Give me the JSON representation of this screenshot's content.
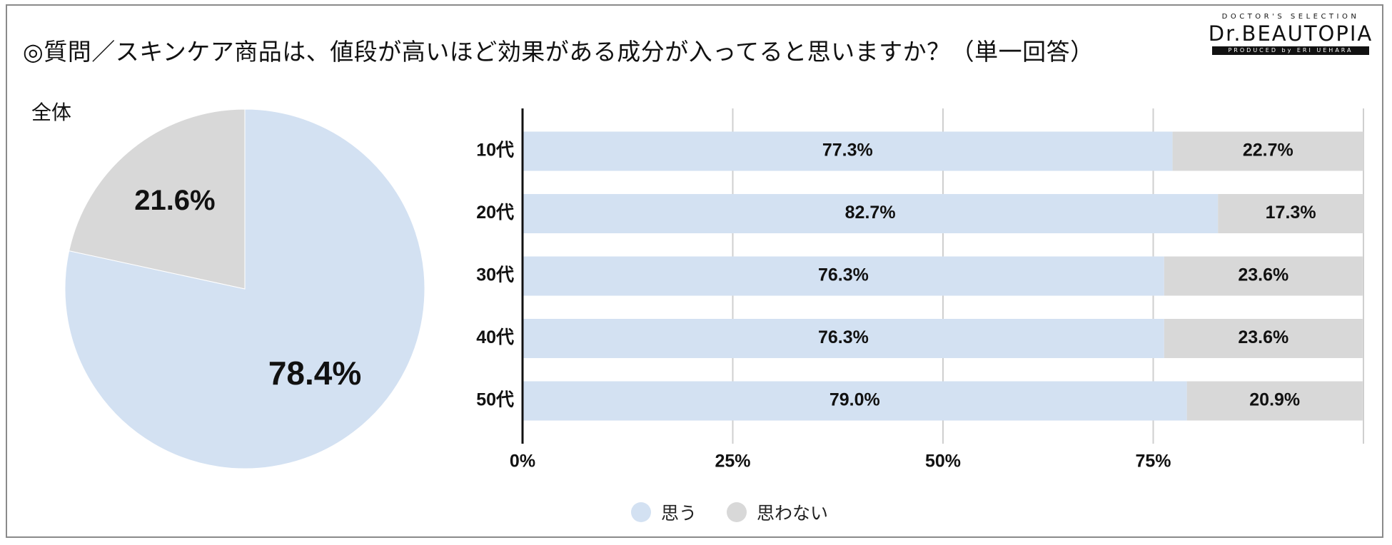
{
  "title": "◎質問／スキンケア商品は、値段が高いほど効果がある成分が入ってると思いますか？（単一回答）",
  "logo": {
    "top": "DOCTOR'S SELECTION",
    "main": "Dr.BEAUTOPIA",
    "sub": "PRODUCED by ERI UEHARA"
  },
  "colors": {
    "yes": "#d3e1f2",
    "no": "#d8d8d8",
    "grid": "#cfcfcf",
    "axis": "#111111"
  },
  "chart_data": [
    {
      "type": "pie",
      "title": "全体",
      "slices": [
        {
          "name": "思う",
          "value": 78.4,
          "label": "78.4%"
        },
        {
          "name": "思わない",
          "value": 21.6,
          "label": "21.6%"
        }
      ]
    },
    {
      "type": "bar",
      "orientation": "horizontal",
      "stacked": true,
      "categories": [
        "10代",
        "20代",
        "30代",
        "40代",
        "50代"
      ],
      "series": [
        {
          "name": "思う",
          "values": [
            77.3,
            82.7,
            76.3,
            76.3,
            79.0
          ],
          "labels": [
            "77.3%",
            "82.7%",
            "76.3%",
            "76.3%",
            "79.0%"
          ]
        },
        {
          "name": "思わない",
          "values": [
            22.7,
            17.3,
            23.6,
            23.6,
            20.9
          ],
          "labels": [
            "22.7%",
            "17.3%",
            "23.6%",
            "23.6%",
            "20.9%"
          ]
        }
      ],
      "xlim": [
        0,
        100
      ],
      "xticks": [
        "0%",
        "25%",
        "50%",
        "75%"
      ],
      "grid": true,
      "legend": "bottom"
    }
  ],
  "legend": [
    {
      "label": "思う"
    },
    {
      "label": "思わない"
    }
  ]
}
